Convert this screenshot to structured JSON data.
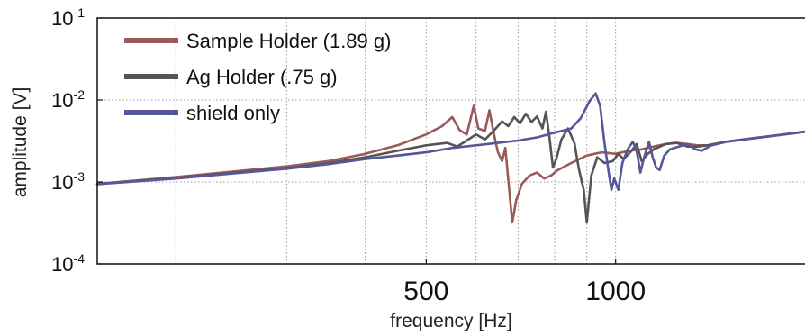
{
  "chart_data": {
    "type": "line",
    "xlabel": "frequency [Hz]",
    "ylabel": "amplitude [V]",
    "xscale": "log",
    "yscale": "log",
    "xlim": [
      150,
      2000
    ],
    "ylim": [
      0.0001,
      0.1
    ],
    "x_ticks": [
      {
        "value": 500,
        "label": "500"
      },
      {
        "value": 1000,
        "label": "1000"
      }
    ],
    "x_minor_gridlines": [
      200,
      300,
      400,
      600,
      700,
      800,
      900
    ],
    "y_ticks": [
      {
        "value": 0.1,
        "base": "10",
        "exp": "-1"
      },
      {
        "value": 0.01,
        "base": "10",
        "exp": "-2"
      },
      {
        "value": 0.001,
        "base": "10",
        "exp": "-3"
      },
      {
        "value": 0.0001,
        "base": "10",
        "exp": "-4"
      }
    ],
    "grid": true,
    "legend_position": "top-left",
    "series": [
      {
        "name": "Sample Holder (1.89 g)",
        "color": "#9a5a5a",
        "points": [
          [
            150,
            0.00095
          ],
          [
            200,
            0.00115
          ],
          [
            250,
            0.00135
          ],
          [
            300,
            0.00155
          ],
          [
            350,
            0.0018
          ],
          [
            400,
            0.0022
          ],
          [
            450,
            0.0028
          ],
          [
            500,
            0.0038
          ],
          [
            530,
            0.0048
          ],
          [
            550,
            0.0062
          ],
          [
            565,
            0.0043
          ],
          [
            580,
            0.0038
          ],
          [
            595,
            0.0085
          ],
          [
            605,
            0.0045
          ],
          [
            620,
            0.0042
          ],
          [
            630,
            0.0075
          ],
          [
            640,
            0.004
          ],
          [
            650,
            0.0023
          ],
          [
            660,
            0.0018
          ],
          [
            668,
            0.0026
          ],
          [
            676,
            0.00095
          ],
          [
            685,
            0.00032
          ],
          [
            695,
            0.0006
          ],
          [
            710,
            0.00095
          ],
          [
            730,
            0.0012
          ],
          [
            750,
            0.0013
          ],
          [
            770,
            0.0011
          ],
          [
            790,
            0.0012
          ],
          [
            810,
            0.0014
          ],
          [
            850,
            0.0017
          ],
          [
            900,
            0.0021
          ],
          [
            950,
            0.0023
          ],
          [
            1000,
            0.0022
          ],
          [
            1050,
            0.0024
          ],
          [
            1100,
            0.0025
          ],
          [
            1150,
            0.0027
          ],
          [
            1200,
            0.0029
          ],
          [
            1250,
            0.003
          ],
          [
            1300,
            0.0029
          ],
          [
            1350,
            0.0028
          ],
          [
            1400,
            0.0028
          ],
          [
            1500,
            0.0031
          ],
          [
            1650,
            0.0034
          ],
          [
            1800,
            0.0037
          ],
          [
            2000,
            0.0041
          ]
        ]
      },
      {
        "name": "Ag Holder (.75 g)",
        "color": "#555555",
        "points": [
          [
            150,
            0.00094
          ],
          [
            200,
            0.00112
          ],
          [
            250,
            0.0013
          ],
          [
            300,
            0.00148
          ],
          [
            350,
            0.0017
          ],
          [
            400,
            0.002
          ],
          [
            450,
            0.0024
          ],
          [
            500,
            0.0028
          ],
          [
            540,
            0.003
          ],
          [
            560,
            0.0027
          ],
          [
            580,
            0.0032
          ],
          [
            600,
            0.0038
          ],
          [
            620,
            0.0033
          ],
          [
            640,
            0.0042
          ],
          [
            660,
            0.0055
          ],
          [
            675,
            0.0048
          ],
          [
            690,
            0.0062
          ],
          [
            705,
            0.0052
          ],
          [
            720,
            0.0068
          ],
          [
            735,
            0.0054
          ],
          [
            750,
            0.0063
          ],
          [
            765,
            0.0045
          ],
          [
            775,
            0.0072
          ],
          [
            785,
            0.0035
          ],
          [
            795,
            0.0015
          ],
          [
            805,
            0.0019
          ],
          [
            820,
            0.0033
          ],
          [
            840,
            0.0045
          ],
          [
            860,
            0.003
          ],
          [
            875,
            0.0014
          ],
          [
            890,
            0.0008
          ],
          [
            900,
            0.00032
          ],
          [
            915,
            0.0012
          ],
          [
            935,
            0.002
          ],
          [
            960,
            0.0017
          ],
          [
            990,
            0.0018
          ],
          [
            1010,
            0.0022
          ],
          [
            1030,
            0.0019
          ],
          [
            1060,
            0.0024
          ],
          [
            1080,
            0.0029
          ],
          [
            1100,
            0.0018
          ],
          [
            1125,
            0.0022
          ],
          [
            1150,
            0.0025
          ],
          [
            1200,
            0.0029
          ],
          [
            1250,
            0.003
          ],
          [
            1300,
            0.0027
          ],
          [
            1350,
            0.0027
          ],
          [
            1400,
            0.0028
          ],
          [
            1500,
            0.0031
          ],
          [
            1650,
            0.0034
          ],
          [
            1800,
            0.0037
          ],
          [
            2000,
            0.0041
          ]
        ]
      },
      {
        "name": "shield only",
        "color": "#56569a",
        "points": [
          [
            150,
            0.00094
          ],
          [
            200,
            0.0011
          ],
          [
            250,
            0.00128
          ],
          [
            300,
            0.00145
          ],
          [
            350,
            0.00165
          ],
          [
            400,
            0.0019
          ],
          [
            450,
            0.0021
          ],
          [
            500,
            0.0023
          ],
          [
            550,
            0.0026
          ],
          [
            600,
            0.0028
          ],
          [
            650,
            0.003
          ],
          [
            700,
            0.0032
          ],
          [
            750,
            0.0035
          ],
          [
            800,
            0.004
          ],
          [
            850,
            0.0045
          ],
          [
            880,
            0.006
          ],
          [
            910,
            0.0098
          ],
          [
            930,
            0.012
          ],
          [
            945,
            0.0085
          ],
          [
            960,
            0.003
          ],
          [
            975,
            0.0013
          ],
          [
            985,
            0.0008
          ],
          [
            995,
            0.0011
          ],
          [
            1010,
            0.0008
          ],
          [
            1025,
            0.0017
          ],
          [
            1045,
            0.0025
          ],
          [
            1065,
            0.0031
          ],
          [
            1080,
            0.0024
          ],
          [
            1095,
            0.0013
          ],
          [
            1110,
            0.002
          ],
          [
            1130,
            0.0031
          ],
          [
            1145,
            0.002
          ],
          [
            1160,
            0.0015
          ],
          [
            1175,
            0.0014
          ],
          [
            1195,
            0.0021
          ],
          [
            1220,
            0.0025
          ],
          [
            1260,
            0.0027
          ],
          [
            1300,
            0.0029
          ],
          [
            1340,
            0.0025
          ],
          [
            1370,
            0.0024
          ],
          [
            1420,
            0.0028
          ],
          [
            1500,
            0.0031
          ],
          [
            1650,
            0.0034
          ],
          [
            1800,
            0.0037
          ],
          [
            2000,
            0.0041
          ]
        ]
      }
    ]
  }
}
